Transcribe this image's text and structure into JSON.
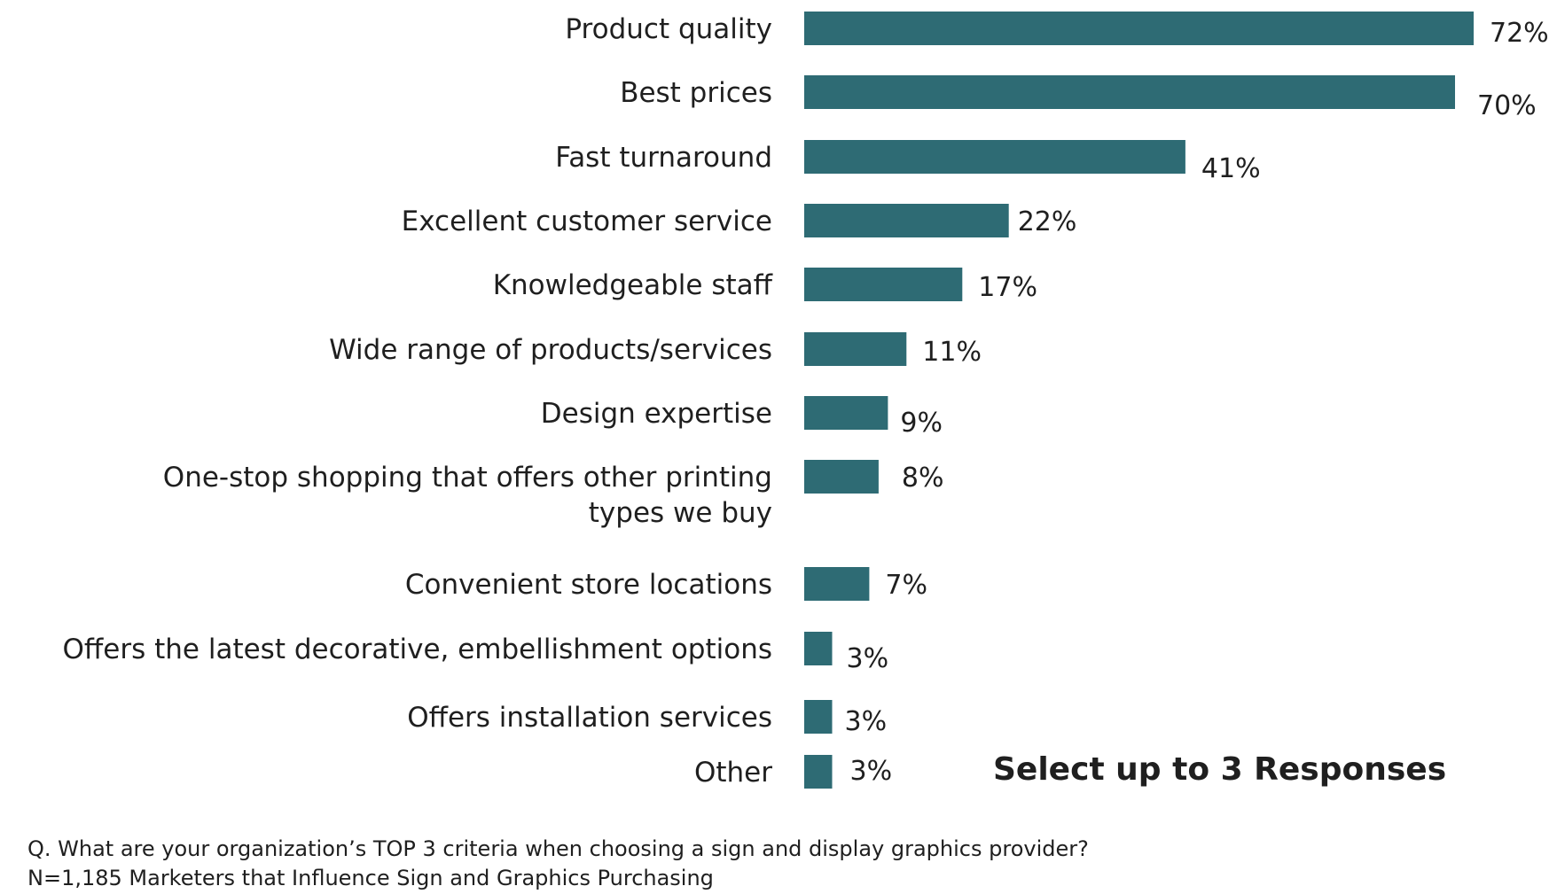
{
  "chart_data": {
    "type": "bar",
    "orientation": "horizontal",
    "categories": [
      "Product quality",
      "Best prices",
      "Fast turnaround",
      "Excellent customer service",
      "Knowledgeable staff",
      "Wide range of products/services",
      "Design expertise",
      "One-stop shopping that offers other printing types we buy",
      "Convenient store locations",
      "Offers the latest decorative, embellishment options",
      "Offers installation services",
      "Other"
    ],
    "values": [
      72,
      70,
      41,
      22,
      17,
      11,
      9,
      8,
      7,
      3,
      3,
      3
    ],
    "value_labels": [
      "72%",
      "70%",
      "41%",
      "22%",
      "17%",
      "11%",
      "9%",
      "8%",
      "7%",
      "3%",
      "3%",
      "3%"
    ],
    "unit": "%",
    "xlim": [
      0,
      72
    ],
    "grid": false,
    "legend": "none",
    "bar_color": "#2e6b74",
    "annotation": "Select up to 3 Responses"
  },
  "footnotes": {
    "question": "Q. What are your organization’s TOP 3 criteria when choosing a sign and display graphics provider?",
    "sample": "N=1,185 Marketers that Influence Sign and Graphics Purchasing"
  }
}
